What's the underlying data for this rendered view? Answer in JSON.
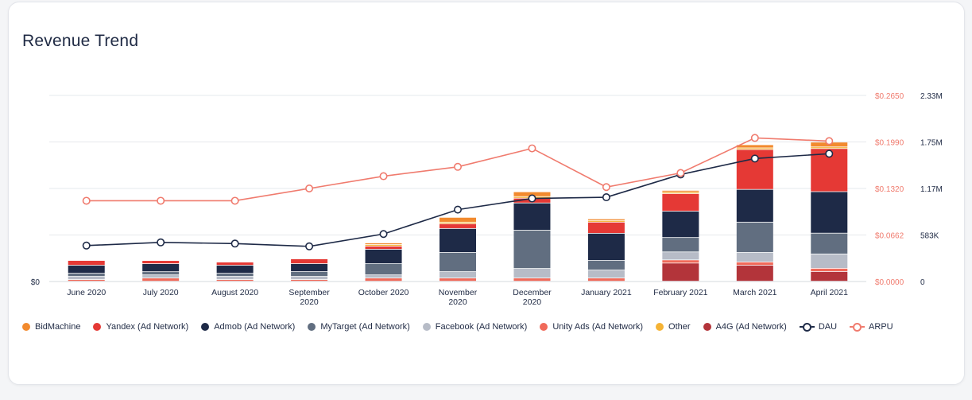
{
  "title": "Revenue Trend",
  "colors": {
    "BidMachine": "#f28a2e",
    "Yandex (Ad Network)": "#e53935",
    "Admob (Ad Network)": "#1e2a47",
    "MyTarget (Ad Network)": "#616e80",
    "Facebook (Ad Network)": "#b7bcc7",
    "Unity Ads (Ad Network)": "#f06a5a",
    "Other": "#f5b335",
    "A4G (Ad Network)": "#b3343a",
    "DAU": "#1e2a47",
    "ARPU": "#f07b6e"
  },
  "chart_data": {
    "type": "bar",
    "stacked": true,
    "title": "Revenue Trend",
    "categories": [
      "June 2020",
      "July 2020",
      "August 2020",
      "September 2020",
      "October 2020",
      "November 2020",
      "December 2020",
      "January 2021",
      "February 2021",
      "March 2021",
      "April 2021"
    ],
    "category_lines": [
      [
        "June 2020"
      ],
      [
        "July 2020"
      ],
      [
        "August 2020"
      ],
      [
        "September",
        "2020"
      ],
      [
        "October 2020"
      ],
      [
        "November",
        "2020"
      ],
      [
        "December",
        "2020"
      ],
      [
        "January 2021"
      ],
      [
        "February 2021"
      ],
      [
        "March 2021"
      ],
      [
        "April 2021"
      ]
    ],
    "left_axis": {
      "ticks": [
        "$0"
      ],
      "ylim": [
        0,
        0.265
      ]
    },
    "arpu_axis": {
      "ticks": [
        "$0.0000",
        "$0.0662",
        "$0.1320",
        "$0.1990",
        "$0.2650"
      ],
      "ylim": [
        0,
        0.265
      ]
    },
    "dau_axis": {
      "ticks": [
        "0",
        "583K",
        "1.17M",
        "1.75M",
        "2.33M"
      ],
      "ylim": [
        0,
        2330000
      ]
    },
    "series": [
      {
        "name": "A4G (Ad Network)",
        "values": [
          0,
          0,
          0,
          0,
          0,
          0,
          0,
          0,
          0.0258,
          0.0228,
          0.0138
        ]
      },
      {
        "name": "Unity Ads (Ad Network)",
        "values": [
          0.0023,
          0.0045,
          0.0023,
          0.0023,
          0.0045,
          0.0045,
          0.0045,
          0.0045,
          0.0045,
          0.0045,
          0.0045
        ]
      },
      {
        "name": "Facebook (Ad Network)",
        "values": [
          0.0045,
          0.0045,
          0.0045,
          0.0045,
          0.0045,
          0.0091,
          0.0136,
          0.0114,
          0.0114,
          0.0136,
          0.0205
        ]
      },
      {
        "name": "MyTarget (Ad Network)",
        "values": [
          0.0045,
          0.0045,
          0.0045,
          0.0068,
          0.0159,
          0.0273,
          0.0546,
          0.0136,
          0.0205,
          0.0432,
          0.0296
        ]
      },
      {
        "name": "Admob (Ad Network)",
        "values": [
          0.0114,
          0.0114,
          0.0114,
          0.0114,
          0.0205,
          0.0341,
          0.0387,
          0.0387,
          0.0375,
          0.0466,
          0.0591
        ]
      },
      {
        "name": "Yandex (Ad Network)",
        "values": [
          0.0068,
          0.0045,
          0.0045,
          0.0068,
          0.0045,
          0.0068,
          0.0068,
          0.0159,
          0.025,
          0.0568,
          0.0614
        ]
      },
      {
        "name": "Other",
        "values": [
          0,
          0,
          0,
          0,
          0.0023,
          0.0023,
          0.0023,
          0.0023,
          0.0023,
          0.0023,
          0.0023
        ]
      },
      {
        "name": "BidMachine",
        "values": [
          0,
          0,
          0,
          0,
          0.0023,
          0.0068,
          0.0068,
          0.0023,
          0.0023,
          0.0045,
          0.0068
        ]
      }
    ],
    "lines": [
      {
        "name": "DAU",
        "axis": "dau",
        "values": [
          450000,
          490000,
          475000,
          440000,
          595000,
          900000,
          1040000,
          1055000,
          1340000,
          1540000,
          1600000
        ]
      },
      {
        "name": "ARPU",
        "axis": "arpu",
        "values": [
          0.115,
          0.115,
          0.115,
          0.1325,
          0.15,
          0.1633,
          0.1896,
          0.1345,
          0.1546,
          0.2045,
          0.2
        ]
      }
    ],
    "legend": [
      "BidMachine",
      "Yandex (Ad Network)",
      "Admob (Ad Network)",
      "MyTarget (Ad Network)",
      "Facebook (Ad Network)",
      "Unity Ads (Ad Network)",
      "Other",
      "A4G (Ad Network)",
      "DAU",
      "ARPU"
    ],
    "legend_position": "bottom",
    "grid": true
  }
}
